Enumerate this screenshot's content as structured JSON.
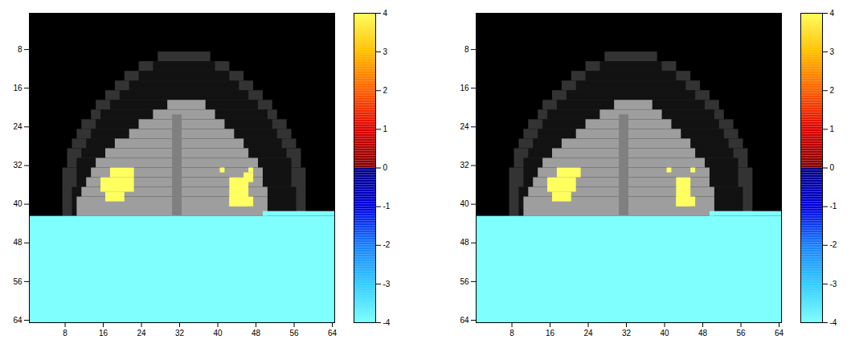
{
  "chart_data": [
    {
      "type": "heatmap",
      "xlim": [
        0.5,
        64.5
      ],
      "ylim": [
        64.5,
        0.5
      ],
      "xticks": [
        8,
        16,
        24,
        32,
        40,
        48,
        56,
        64
      ],
      "yticks": [
        8,
        16,
        24,
        32,
        40,
        48,
        56,
        64
      ],
      "colorbar": {
        "range": [
          -4,
          4
        ],
        "ticks": [
          -4,
          -3,
          -2,
          -1,
          0,
          1,
          2,
          3,
          4
        ]
      },
      "anatomy": [
        {
          "rows": [
            9,
            10
          ],
          "cols": [
            28,
            38
          ],
          "intensity": 0.2
        },
        {
          "rows": [
            11,
            12
          ],
          "cols": [
            24,
            42
          ],
          "intensity": 0.2
        },
        {
          "rows": [
            13,
            14
          ],
          "cols": [
            21,
            45
          ],
          "intensity": 0.2
        },
        {
          "rows": [
            15,
            16
          ],
          "cols": [
            19,
            47
          ],
          "intensity": 0.2
        },
        {
          "rows": [
            17,
            18
          ],
          "cols": [
            17,
            49
          ],
          "intensity": 0.2
        },
        {
          "rows": [
            19,
            20
          ],
          "cols": [
            15,
            51
          ],
          "intensity": 0.2
        },
        {
          "rows": [
            21,
            22
          ],
          "cols": [
            14,
            52
          ],
          "intensity": 0.2
        },
        {
          "rows": [
            23,
            24
          ],
          "cols": [
            12,
            54
          ],
          "intensity": 0.2
        },
        {
          "rows": [
            25,
            26
          ],
          "cols": [
            11,
            55
          ],
          "intensity": 0.2
        },
        {
          "rows": [
            27,
            28
          ],
          "cols": [
            10,
            56
          ],
          "intensity": 0.2
        },
        {
          "rows": [
            29,
            32
          ],
          "cols": [
            9,
            57
          ],
          "intensity": 0.2
        },
        {
          "rows": [
            33,
            42
          ],
          "cols": [
            8,
            58
          ],
          "intensity": 0.2
        },
        {
          "rows": [
            11,
            12
          ],
          "cols": [
            27,
            39
          ],
          "intensity": 0.07
        },
        {
          "rows": [
            13,
            14
          ],
          "cols": [
            24,
            42
          ],
          "intensity": 0.07
        },
        {
          "rows": [
            15,
            16
          ],
          "cols": [
            22,
            44
          ],
          "intensity": 0.07
        },
        {
          "rows": [
            17,
            18
          ],
          "cols": [
            20,
            46
          ],
          "intensity": 0.07
        },
        {
          "rows": [
            19,
            20
          ],
          "cols": [
            18,
            48
          ],
          "intensity": 0.07
        },
        {
          "rows": [
            21,
            22
          ],
          "cols": [
            16,
            50
          ],
          "intensity": 0.07
        },
        {
          "rows": [
            23,
            24
          ],
          "cols": [
            15,
            51
          ],
          "intensity": 0.07
        },
        {
          "rows": [
            25,
            26
          ],
          "cols": [
            14,
            52
          ],
          "intensity": 0.07
        },
        {
          "rows": [
            27,
            28
          ],
          "cols": [
            13,
            53
          ],
          "intensity": 0.07
        },
        {
          "rows": [
            29,
            30
          ],
          "cols": [
            12,
            54
          ],
          "intensity": 0.07
        },
        {
          "rows": [
            31,
            36
          ],
          "cols": [
            11,
            55
          ],
          "intensity": 0.07
        },
        {
          "rows": [
            37,
            42
          ],
          "cols": [
            10,
            56
          ],
          "intensity": 0.07
        },
        {
          "rows": [
            19,
            20
          ],
          "cols": [
            30,
            37
          ],
          "intensity": 0.62
        },
        {
          "rows": [
            21,
            22
          ],
          "cols": [
            27,
            39
          ],
          "intensity": 0.62
        },
        {
          "rows": [
            23,
            24
          ],
          "cols": [
            24,
            41
          ],
          "intensity": 0.62
        },
        {
          "rows": [
            25,
            26
          ],
          "cols": [
            22,
            43
          ],
          "intensity": 0.62
        },
        {
          "rows": [
            27,
            28
          ],
          "cols": [
            19,
            45
          ],
          "intensity": 0.62
        },
        {
          "rows": [
            29,
            30
          ],
          "cols": [
            17,
            46
          ],
          "intensity": 0.62
        },
        {
          "rows": [
            31,
            32
          ],
          "cols": [
            15,
            48
          ],
          "intensity": 0.62
        },
        {
          "rows": [
            33,
            34
          ],
          "cols": [
            14,
            49
          ],
          "intensity": 0.62
        },
        {
          "rows": [
            35,
            36
          ],
          "cols": [
            13,
            49
          ],
          "intensity": 0.62
        },
        {
          "rows": [
            37,
            38
          ],
          "cols": [
            12,
            50
          ],
          "intensity": 0.62
        },
        {
          "rows": [
            39,
            42
          ],
          "cols": [
            11,
            50
          ],
          "intensity": 0.62
        },
        {
          "rows": [
            22,
            42
          ],
          "cols": [
            31,
            32
          ],
          "intensity": 0.5
        }
      ],
      "cells": [
        {
          "rows": [
            43,
            64
          ],
          "cols": [
            1,
            64
          ],
          "value": -4
        },
        {
          "rows": [
            42,
            42
          ],
          "cols": [
            50,
            64
          ],
          "value": -4
        },
        {
          "rows": [
            33,
            34
          ],
          "cols": [
            18,
            22
          ],
          "value": 4
        },
        {
          "rows": [
            35,
            37
          ],
          "cols": [
            16,
            22
          ],
          "value": 4
        },
        {
          "rows": [
            38,
            39
          ],
          "cols": [
            17,
            20
          ],
          "value": 4
        },
        {
          "rows": [
            33,
            33
          ],
          "cols": [
            41,
            41
          ],
          "value": 4
        },
        {
          "rows": [
            33,
            33
          ],
          "cols": [
            47,
            47
          ],
          "value": 4
        },
        {
          "rows": [
            34,
            35
          ],
          "cols": [
            46,
            47
          ],
          "value": 4
        },
        {
          "rows": [
            35,
            40
          ],
          "cols": [
            43,
            46
          ],
          "value": 4
        },
        {
          "rows": [
            39,
            40
          ],
          "cols": [
            43,
            47
          ],
          "value": 4
        }
      ]
    },
    {
      "type": "heatmap",
      "xlim": [
        0.5,
        64.5
      ],
      "ylim": [
        64.5,
        0.5
      ],
      "xticks": [
        8,
        16,
        24,
        32,
        40,
        48,
        56,
        64
      ],
      "yticks": [
        8,
        16,
        24,
        32,
        40,
        48,
        56,
        64
      ],
      "colorbar": {
        "range": [
          -4,
          4
        ],
        "ticks": [
          -4,
          -3,
          -2,
          -1,
          0,
          1,
          2,
          3,
          4
        ]
      },
      "anatomy": [
        {
          "rows": [
            9,
            10
          ],
          "cols": [
            28,
            38
          ],
          "intensity": 0.2
        },
        {
          "rows": [
            11,
            12
          ],
          "cols": [
            24,
            42
          ],
          "intensity": 0.2
        },
        {
          "rows": [
            13,
            14
          ],
          "cols": [
            21,
            45
          ],
          "intensity": 0.2
        },
        {
          "rows": [
            15,
            16
          ],
          "cols": [
            19,
            47
          ],
          "intensity": 0.2
        },
        {
          "rows": [
            17,
            18
          ],
          "cols": [
            17,
            49
          ],
          "intensity": 0.2
        },
        {
          "rows": [
            19,
            20
          ],
          "cols": [
            15,
            51
          ],
          "intensity": 0.2
        },
        {
          "rows": [
            21,
            22
          ],
          "cols": [
            14,
            52
          ],
          "intensity": 0.2
        },
        {
          "rows": [
            23,
            24
          ],
          "cols": [
            12,
            54
          ],
          "intensity": 0.2
        },
        {
          "rows": [
            25,
            26
          ],
          "cols": [
            11,
            55
          ],
          "intensity": 0.2
        },
        {
          "rows": [
            27,
            28
          ],
          "cols": [
            10,
            56
          ],
          "intensity": 0.2
        },
        {
          "rows": [
            29,
            32
          ],
          "cols": [
            9,
            57
          ],
          "intensity": 0.2
        },
        {
          "rows": [
            33,
            42
          ],
          "cols": [
            8,
            58
          ],
          "intensity": 0.2
        },
        {
          "rows": [
            11,
            12
          ],
          "cols": [
            27,
            39
          ],
          "intensity": 0.07
        },
        {
          "rows": [
            13,
            14
          ],
          "cols": [
            24,
            42
          ],
          "intensity": 0.07
        },
        {
          "rows": [
            15,
            16
          ],
          "cols": [
            22,
            44
          ],
          "intensity": 0.07
        },
        {
          "rows": [
            17,
            18
          ],
          "cols": [
            20,
            46
          ],
          "intensity": 0.07
        },
        {
          "rows": [
            19,
            20
          ],
          "cols": [
            18,
            48
          ],
          "intensity": 0.07
        },
        {
          "rows": [
            21,
            22
          ],
          "cols": [
            16,
            50
          ],
          "intensity": 0.07
        },
        {
          "rows": [
            23,
            24
          ],
          "cols": [
            15,
            51
          ],
          "intensity": 0.07
        },
        {
          "rows": [
            25,
            26
          ],
          "cols": [
            14,
            52
          ],
          "intensity": 0.07
        },
        {
          "rows": [
            27,
            28
          ],
          "cols": [
            13,
            53
          ],
          "intensity": 0.07
        },
        {
          "rows": [
            29,
            30
          ],
          "cols": [
            12,
            54
          ],
          "intensity": 0.07
        },
        {
          "rows": [
            31,
            36
          ],
          "cols": [
            11,
            55
          ],
          "intensity": 0.07
        },
        {
          "rows": [
            37,
            42
          ],
          "cols": [
            10,
            56
          ],
          "intensity": 0.07
        },
        {
          "rows": [
            19,
            20
          ],
          "cols": [
            30,
            37
          ],
          "intensity": 0.62
        },
        {
          "rows": [
            21,
            22
          ],
          "cols": [
            27,
            39
          ],
          "intensity": 0.62
        },
        {
          "rows": [
            23,
            24
          ],
          "cols": [
            24,
            41
          ],
          "intensity": 0.62
        },
        {
          "rows": [
            25,
            26
          ],
          "cols": [
            22,
            43
          ],
          "intensity": 0.62
        },
        {
          "rows": [
            27,
            28
          ],
          "cols": [
            19,
            45
          ],
          "intensity": 0.62
        },
        {
          "rows": [
            29,
            30
          ],
          "cols": [
            17,
            46
          ],
          "intensity": 0.62
        },
        {
          "rows": [
            31,
            32
          ],
          "cols": [
            15,
            48
          ],
          "intensity": 0.62
        },
        {
          "rows": [
            33,
            34
          ],
          "cols": [
            14,
            49
          ],
          "intensity": 0.62
        },
        {
          "rows": [
            35,
            36
          ],
          "cols": [
            13,
            49
          ],
          "intensity": 0.62
        },
        {
          "rows": [
            37,
            38
          ],
          "cols": [
            12,
            50
          ],
          "intensity": 0.62
        },
        {
          "rows": [
            39,
            42
          ],
          "cols": [
            11,
            50
          ],
          "intensity": 0.62
        },
        {
          "rows": [
            22,
            42
          ],
          "cols": [
            31,
            32
          ],
          "intensity": 0.5
        }
      ],
      "cells": [
        {
          "rows": [
            43,
            64
          ],
          "cols": [
            1,
            64
          ],
          "value": -4
        },
        {
          "rows": [
            42,
            42
          ],
          "cols": [
            50,
            64
          ],
          "value": -4
        },
        {
          "rows": [
            33,
            34
          ],
          "cols": [
            18,
            22
          ],
          "value": 4
        },
        {
          "rows": [
            35,
            37
          ],
          "cols": [
            16,
            21
          ],
          "value": 4
        },
        {
          "rows": [
            38,
            39
          ],
          "cols": [
            17,
            20
          ],
          "value": 4
        },
        {
          "rows": [
            33,
            33
          ],
          "cols": [
            41,
            41
          ],
          "value": 4
        },
        {
          "rows": [
            33,
            33
          ],
          "cols": [
            46,
            46
          ],
          "value": 4
        },
        {
          "rows": [
            35,
            40
          ],
          "cols": [
            43,
            45
          ],
          "value": 4
        },
        {
          "rows": [
            39,
            40
          ],
          "cols": [
            43,
            46
          ],
          "value": 4
        }
      ]
    }
  ]
}
